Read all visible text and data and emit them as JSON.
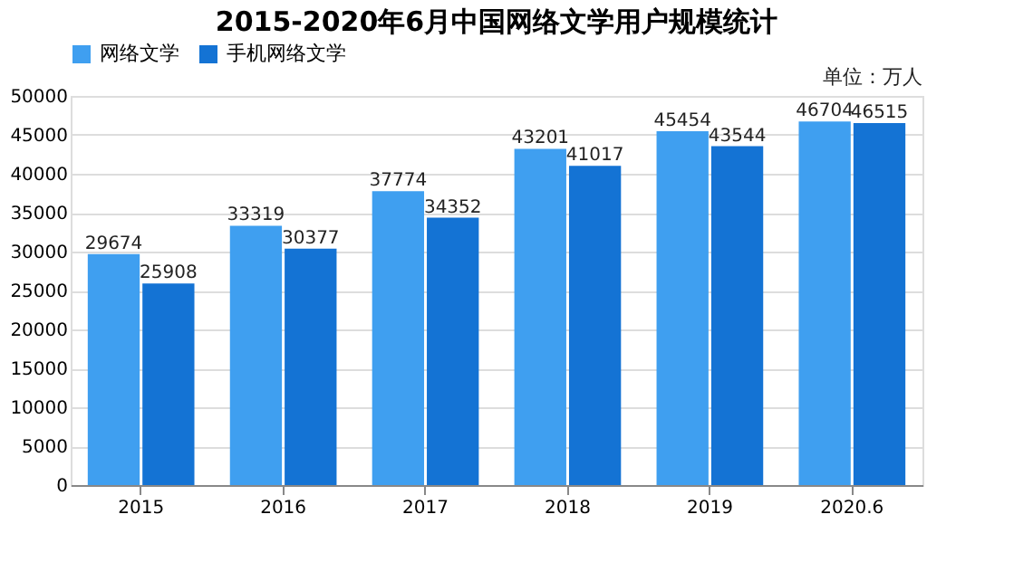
{
  "chart_data": {
    "type": "bar",
    "title": "2015-2020年6月中国网络文学用户规模统计",
    "categories": [
      "2015",
      "2016",
      "2017",
      "2018",
      "2019",
      "2020.6"
    ],
    "series": [
      {
        "name": "网络文学",
        "color": "#3f9ff0",
        "values": [
          29674,
          33319,
          37774,
          43201,
          45454,
          46704
        ]
      },
      {
        "name": "手机网络文学",
        "color": "#1473d4",
        "values": [
          25908,
          30377,
          34352,
          41017,
          43544,
          46515
        ]
      }
    ],
    "ylim": [
      0,
      50000
    ],
    "yticks": [
      0,
      5000,
      10000,
      15000,
      20000,
      25000,
      30000,
      35000,
      40000,
      45000,
      50000
    ],
    "grid": "y",
    "legend": "top",
    "data_labels": true,
    "annotations": [
      "单位：万人"
    ]
  }
}
